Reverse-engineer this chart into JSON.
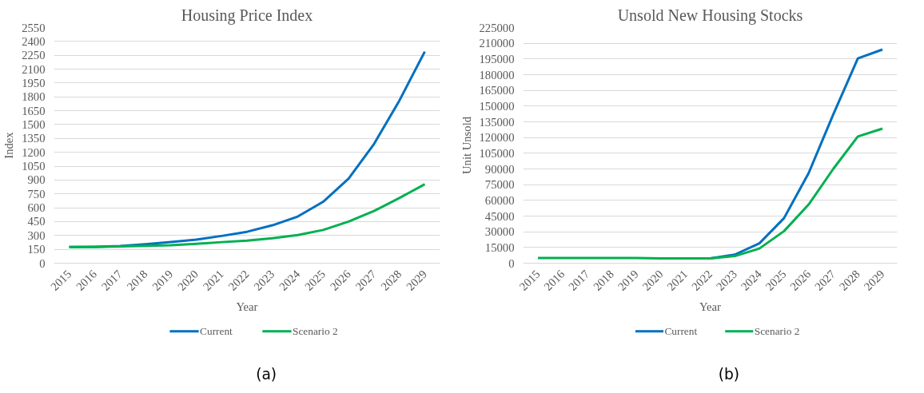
{
  "chart_data": [
    {
      "type": "line",
      "title": "Housing Price Index",
      "xlabel": "Year",
      "ylabel": "Index",
      "categories": [
        "2015",
        "2016",
        "2017",
        "2018",
        "2019",
        "2020",
        "2021",
        "2022",
        "2023",
        "2024",
        "2025",
        "2026",
        "2027",
        "2028",
        "2029"
      ],
      "series": [
        {
          "name": "Current",
          "color": "#0070c0",
          "values": [
            175,
            178,
            185,
            205,
            230,
            255,
            295,
            340,
            410,
            505,
            665,
            915,
            1290,
            1760,
            2290
          ]
        },
        {
          "name": "Scenario 2",
          "color": "#00b050",
          "values": [
            175,
            175,
            182,
            188,
            195,
            210,
            228,
            245,
            270,
            305,
            360,
            450,
            565,
            705,
            855
          ]
        }
      ],
      "ylim": [
        0,
        2550
      ],
      "yticks": [
        0,
        150,
        300,
        450,
        600,
        750,
        900,
        1050,
        1200,
        1350,
        1500,
        1650,
        1800,
        1950,
        2100,
        2250,
        2400,
        2550
      ],
      "grid": "y",
      "legend": "bottom",
      "line_style": "solid",
      "annotations": [
        "(a)"
      ]
    },
    {
      "type": "line",
      "title": "Unsold New Housing Stocks",
      "xlabel": "Year",
      "ylabel": "Unit Unsold",
      "categories": [
        "2015",
        "2016",
        "2017",
        "2018",
        "2019",
        "2020",
        "2021",
        "2022",
        "2023",
        "2024",
        "2025",
        "2026",
        "2027",
        "2028",
        "2029"
      ],
      "series": [
        {
          "name": "Current",
          "color": "#0070c0",
          "values": [
            null,
            null,
            null,
            null,
            null,
            null,
            4500,
            4500,
            8200,
            19000,
            43000,
            86000,
            142000,
            195500,
            204000
          ]
        },
        {
          "name": "Scenario 2",
          "color": "#00b050",
          "values": [
            5000,
            5000,
            5000,
            5000,
            5000,
            4500,
            4500,
            4500,
            6800,
            14000,
            30600,
            56000,
            90000,
            121000,
            128500
          ]
        }
      ],
      "ylim": [
        0,
        225000
      ],
      "yticks": [
        0,
        15000,
        30000,
        45000,
        60000,
        75000,
        90000,
        105000,
        120000,
        135000,
        150000,
        165000,
        180000,
        195000,
        210000,
        225000
      ],
      "grid": "y",
      "legend": "bottom",
      "line_style": "solid",
      "annotations": [
        "(b)"
      ]
    }
  ]
}
